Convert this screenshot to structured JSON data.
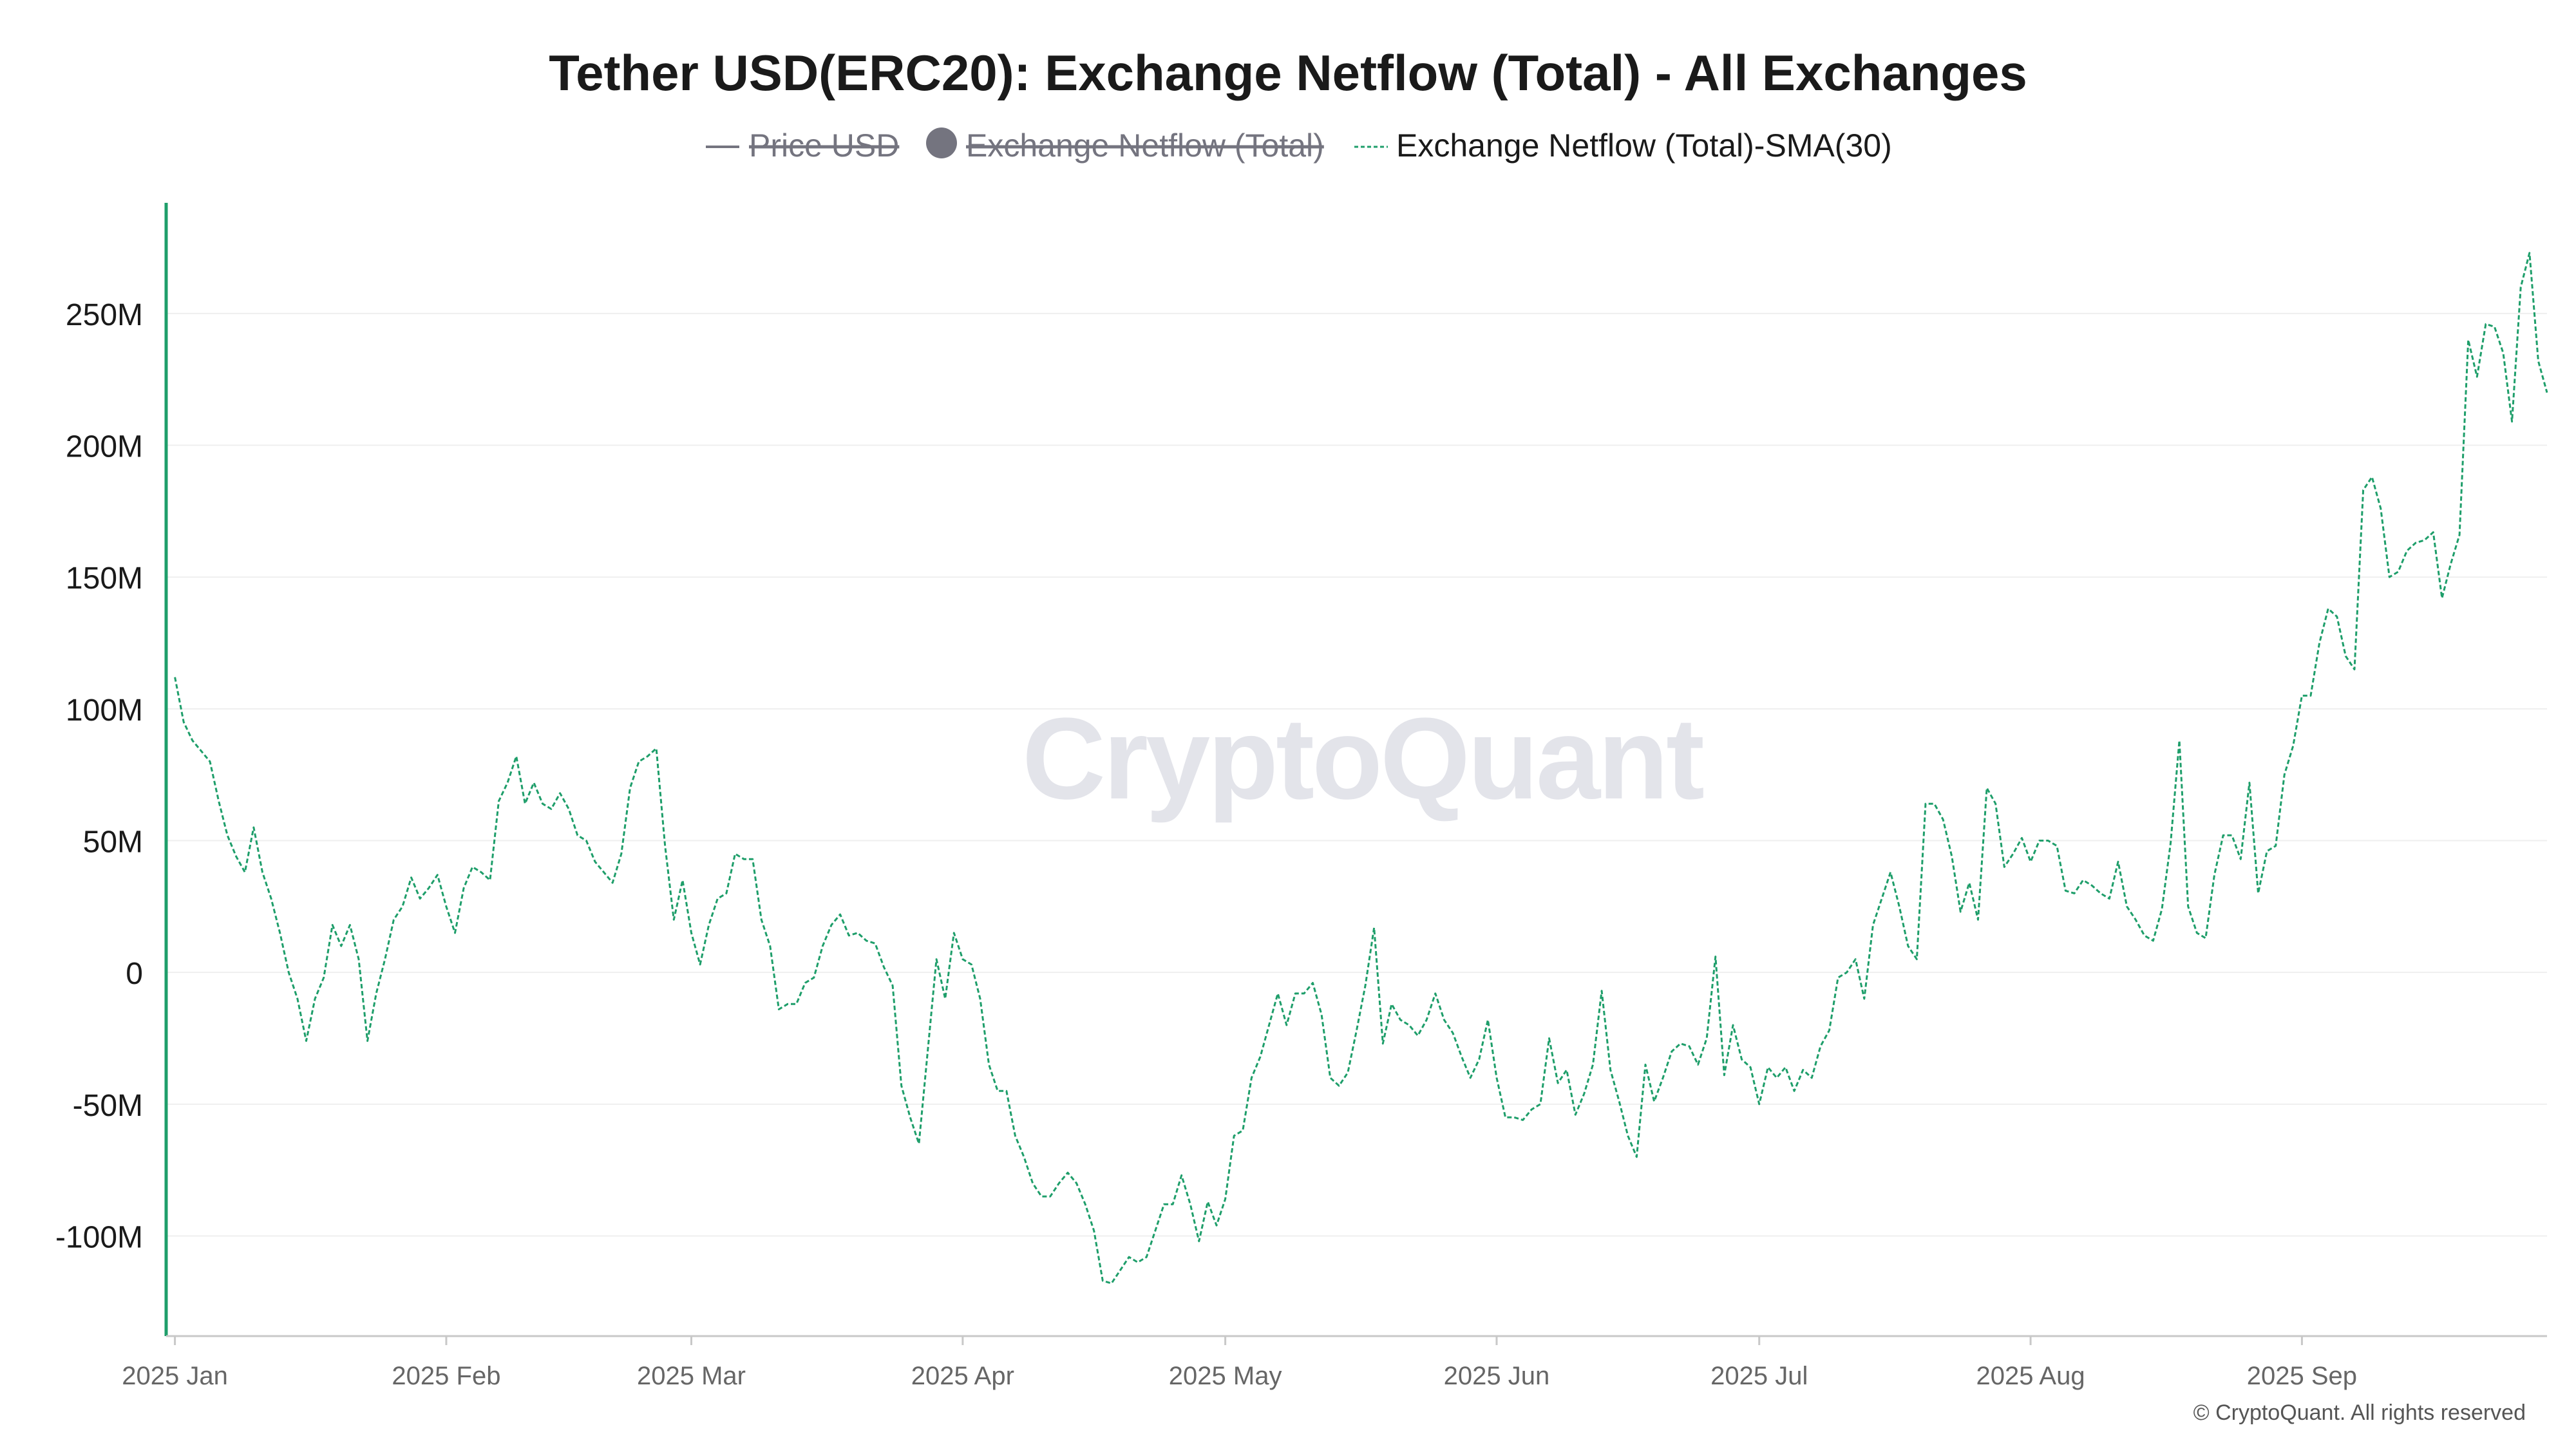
{
  "chart_data": {
    "type": "line",
    "title": "Tether USD(ERC20): Exchange Netflow (Total) - All Exchanges",
    "legend": [
      {
        "name": "Price USD",
        "marker": "line",
        "hidden": true
      },
      {
        "name": "Exchange Netflow (Total)",
        "marker": "circle",
        "hidden": true
      },
      {
        "name": "Exchange Netflow (Total)-SMA(30)",
        "marker": "dashed-line",
        "hidden": false
      }
    ],
    "ylabel": "",
    "xlabel": "",
    "ylim": [
      -138,
      292
    ],
    "xlim": [
      -1,
      271
    ],
    "y_ticks": [
      {
        "value": 250,
        "label": "250M"
      },
      {
        "value": 200,
        "label": "200M"
      },
      {
        "value": 150,
        "label": "150M"
      },
      {
        "value": 100,
        "label": "100M"
      },
      {
        "value": 50,
        "label": "50M"
      },
      {
        "value": 0,
        "label": "0"
      },
      {
        "value": -50,
        "label": "-50M"
      },
      {
        "value": -100,
        "label": "-100M"
      }
    ],
    "x_ticks": [
      {
        "day": 0,
        "label": "2025 Jan"
      },
      {
        "day": 31,
        "label": "2025 Feb"
      },
      {
        "day": 59,
        "label": "2025 Mar"
      },
      {
        "day": 90,
        "label": "2025 Apr"
      },
      {
        "day": 120,
        "label": "2025 May"
      },
      {
        "day": 151,
        "label": "2025 Jun"
      },
      {
        "day": 181,
        "label": "2025 Jul"
      },
      {
        "day": 212,
        "label": "2025 Aug"
      },
      {
        "day": 243,
        "label": "2025 Sep"
      }
    ],
    "x_unit": "day of 2025 (0 = Jan 1)",
    "y_unit": "USD millions",
    "series": [
      {
        "name": "Exchange Netflow (Total)-SMA(30)",
        "color": "#1e9e6a",
        "style": "dashed",
        "points": [
          [
            0,
            112
          ],
          [
            1,
            95
          ],
          [
            2,
            88
          ],
          [
            3,
            84
          ],
          [
            4,
            80
          ],
          [
            5,
            65
          ],
          [
            6,
            52
          ],
          [
            7,
            44
          ],
          [
            8,
            38
          ],
          [
            9,
            55
          ],
          [
            10,
            38
          ],
          [
            11,
            28
          ],
          [
            12,
            15
          ],
          [
            13,
            0
          ],
          [
            14,
            -10
          ],
          [
            15,
            -26
          ],
          [
            16,
            -10
          ],
          [
            17,
            -2
          ],
          [
            18,
            18
          ],
          [
            19,
            10
          ],
          [
            20,
            18
          ],
          [
            21,
            5
          ],
          [
            22,
            -26
          ],
          [
            23,
            -8
          ],
          [
            24,
            5
          ],
          [
            25,
            20
          ],
          [
            26,
            25
          ],
          [
            27,
            36
          ],
          [
            28,
            28
          ],
          [
            29,
            32
          ],
          [
            30,
            37
          ],
          [
            31,
            25
          ],
          [
            32,
            15
          ],
          [
            33,
            32
          ],
          [
            34,
            40
          ],
          [
            35,
            38
          ],
          [
            36,
            35
          ],
          [
            37,
            65
          ],
          [
            38,
            72
          ],
          [
            39,
            82
          ],
          [
            40,
            64
          ],
          [
            41,
            72
          ],
          [
            42,
            64
          ],
          [
            43,
            62
          ],
          [
            44,
            68
          ],
          [
            45,
            62
          ],
          [
            46,
            52
          ],
          [
            47,
            50
          ],
          [
            48,
            42
          ],
          [
            49,
            38
          ],
          [
            50,
            34
          ],
          [
            51,
            45
          ],
          [
            52,
            70
          ],
          [
            53,
            80
          ],
          [
            54,
            82
          ],
          [
            55,
            85
          ],
          [
            56,
            48
          ],
          [
            57,
            20
          ],
          [
            58,
            35
          ],
          [
            59,
            15
          ],
          [
            60,
            3
          ],
          [
            61,
            18
          ],
          [
            62,
            28
          ],
          [
            63,
            30
          ],
          [
            64,
            45
          ],
          [
            65,
            43
          ],
          [
            66,
            43
          ],
          [
            67,
            20
          ],
          [
            68,
            10
          ],
          [
            69,
            -14
          ],
          [
            70,
            -12
          ],
          [
            71,
            -12
          ],
          [
            72,
            -4
          ],
          [
            73,
            -2
          ],
          [
            74,
            10
          ],
          [
            75,
            18
          ],
          [
            76,
            22
          ],
          [
            77,
            14
          ],
          [
            78,
            15
          ],
          [
            79,
            12
          ],
          [
            80,
            11
          ],
          [
            81,
            2
          ],
          [
            82,
            -5
          ],
          [
            83,
            -43
          ],
          [
            84,
            -55
          ],
          [
            85,
            -65
          ],
          [
            86,
            -30
          ],
          [
            87,
            5
          ],
          [
            88,
            -10
          ],
          [
            89,
            15
          ],
          [
            90,
            5
          ],
          [
            91,
            3
          ],
          [
            92,
            -10
          ],
          [
            93,
            -35
          ],
          [
            94,
            -45
          ],
          [
            95,
            -45
          ],
          [
            96,
            -62
          ],
          [
            97,
            -70
          ],
          [
            98,
            -80
          ],
          [
            99,
            -85
          ],
          [
            100,
            -85
          ],
          [
            101,
            -80
          ],
          [
            102,
            -76
          ],
          [
            103,
            -80
          ],
          [
            104,
            -88
          ],
          [
            105,
            -98
          ],
          [
            106,
            -117
          ],
          [
            107,
            -118
          ],
          [
            108,
            -113
          ],
          [
            109,
            -108
          ],
          [
            110,
            -110
          ],
          [
            111,
            -108
          ],
          [
            112,
            -98
          ],
          [
            113,
            -88
          ],
          [
            114,
            -88
          ],
          [
            115,
            -77
          ],
          [
            116,
            -88
          ],
          [
            117,
            -102
          ],
          [
            118,
            -87
          ],
          [
            119,
            -96
          ],
          [
            120,
            -86
          ],
          [
            121,
            -62
          ],
          [
            122,
            -60
          ],
          [
            123,
            -40
          ],
          [
            124,
            -32
          ],
          [
            125,
            -20
          ],
          [
            126,
            -8
          ],
          [
            127,
            -20
          ],
          [
            128,
            -8
          ],
          [
            129,
            -8
          ],
          [
            130,
            -4
          ],
          [
            131,
            -16
          ],
          [
            132,
            -40
          ],
          [
            133,
            -43
          ],
          [
            134,
            -38
          ],
          [
            135,
            -22
          ],
          [
            136,
            -5
          ],
          [
            137,
            17
          ],
          [
            138,
            -27
          ],
          [
            139,
            -12
          ],
          [
            140,
            -18
          ],
          [
            141,
            -20
          ],
          [
            142,
            -24
          ],
          [
            143,
            -18
          ],
          [
            144,
            -8
          ],
          [
            145,
            -18
          ],
          [
            146,
            -23
          ],
          [
            147,
            -32
          ],
          [
            148,
            -40
          ],
          [
            149,
            -33
          ],
          [
            150,
            -18
          ],
          [
            151,
            -40
          ],
          [
            152,
            -55
          ],
          [
            153,
            -55
          ],
          [
            154,
            -56
          ],
          [
            155,
            -52
          ],
          [
            156,
            -50
          ],
          [
            157,
            -25
          ],
          [
            158,
            -42
          ],
          [
            159,
            -37
          ],
          [
            160,
            -54
          ],
          [
            161,
            -46
          ],
          [
            162,
            -35
          ],
          [
            163,
            -7
          ],
          [
            164,
            -37
          ],
          [
            165,
            -49
          ],
          [
            166,
            -62
          ],
          [
            167,
            -70
          ],
          [
            168,
            -35
          ],
          [
            169,
            -49
          ],
          [
            170,
            -40
          ],
          [
            171,
            -30
          ],
          [
            172,
            -27
          ],
          [
            173,
            -28
          ],
          [
            174,
            -35
          ],
          [
            175,
            -25
          ],
          [
            176,
            6
          ],
          [
            177,
            -39
          ],
          [
            178,
            -20
          ],
          [
            179,
            -33
          ],
          [
            180,
            -36
          ],
          [
            181,
            -50
          ],
          [
            182,
            -36
          ],
          [
            183,
            -40
          ],
          [
            184,
            -36
          ],
          [
            185,
            -45
          ],
          [
            186,
            -37
          ],
          [
            187,
            -40
          ],
          [
            188,
            -28
          ],
          [
            189,
            -22
          ],
          [
            190,
            -2
          ],
          [
            191,
            0
          ],
          [
            192,
            5
          ],
          [
            193,
            -10
          ],
          [
            194,
            18
          ],
          [
            195,
            28
          ],
          [
            196,
            38
          ],
          [
            197,
            25
          ],
          [
            198,
            10
          ],
          [
            199,
            5
          ],
          [
            200,
            64
          ],
          [
            201,
            64
          ],
          [
            202,
            58
          ],
          [
            203,
            44
          ],
          [
            204,
            23
          ],
          [
            205,
            34
          ],
          [
            206,
            20
          ],
          [
            207,
            70
          ],
          [
            208,
            64
          ],
          [
            209,
            40
          ],
          [
            210,
            45
          ],
          [
            211,
            51
          ],
          [
            212,
            42
          ],
          [
            213,
            50
          ],
          [
            214,
            50
          ],
          [
            215,
            48
          ],
          [
            216,
            31
          ],
          [
            217,
            30
          ],
          [
            218,
            35
          ],
          [
            219,
            33
          ],
          [
            220,
            30
          ],
          [
            221,
            28
          ],
          [
            222,
            42
          ],
          [
            223,
            25
          ],
          [
            224,
            20
          ],
          [
            225,
            14
          ],
          [
            226,
            12
          ],
          [
            227,
            24
          ],
          [
            228,
            49
          ],
          [
            229,
            88
          ],
          [
            230,
            25
          ],
          [
            231,
            15
          ],
          [
            232,
            13
          ],
          [
            233,
            37
          ],
          [
            234,
            52
          ],
          [
            235,
            52
          ],
          [
            236,
            43
          ],
          [
            237,
            72
          ],
          [
            238,
            30
          ],
          [
            239,
            46
          ],
          [
            240,
            48
          ],
          [
            241,
            75
          ],
          [
            242,
            86
          ],
          [
            243,
            105
          ],
          [
            244,
            105
          ],
          [
            245,
            125
          ],
          [
            246,
            138
          ],
          [
            247,
            135
          ],
          [
            248,
            120
          ],
          [
            249,
            115
          ],
          [
            250,
            183
          ],
          [
            251,
            188
          ],
          [
            252,
            176
          ],
          [
            253,
            150
          ],
          [
            254,
            152
          ],
          [
            255,
            160
          ],
          [
            256,
            163
          ],
          [
            257,
            164
          ],
          [
            258,
            167
          ],
          [
            259,
            142
          ],
          [
            260,
            155
          ],
          [
            261,
            166
          ],
          [
            262,
            240
          ],
          [
            263,
            226
          ],
          [
            264,
            246
          ],
          [
            265,
            245
          ],
          [
            266,
            235
          ],
          [
            267,
            209
          ],
          [
            268,
            260
          ],
          [
            269,
            273
          ],
          [
            270,
            232
          ],
          [
            271,
            220
          ]
        ]
      }
    ]
  },
  "watermark": "CryptoQuant",
  "footer": {
    "copyright": "© CryptoQuant. All rights reserved"
  },
  "colors": {
    "accent": "#1e9e6a",
    "axis": "#c8c8c8",
    "grid": "#efefef",
    "watermark": "#e3e4ea",
    "legend_hidden": "#74747f"
  }
}
